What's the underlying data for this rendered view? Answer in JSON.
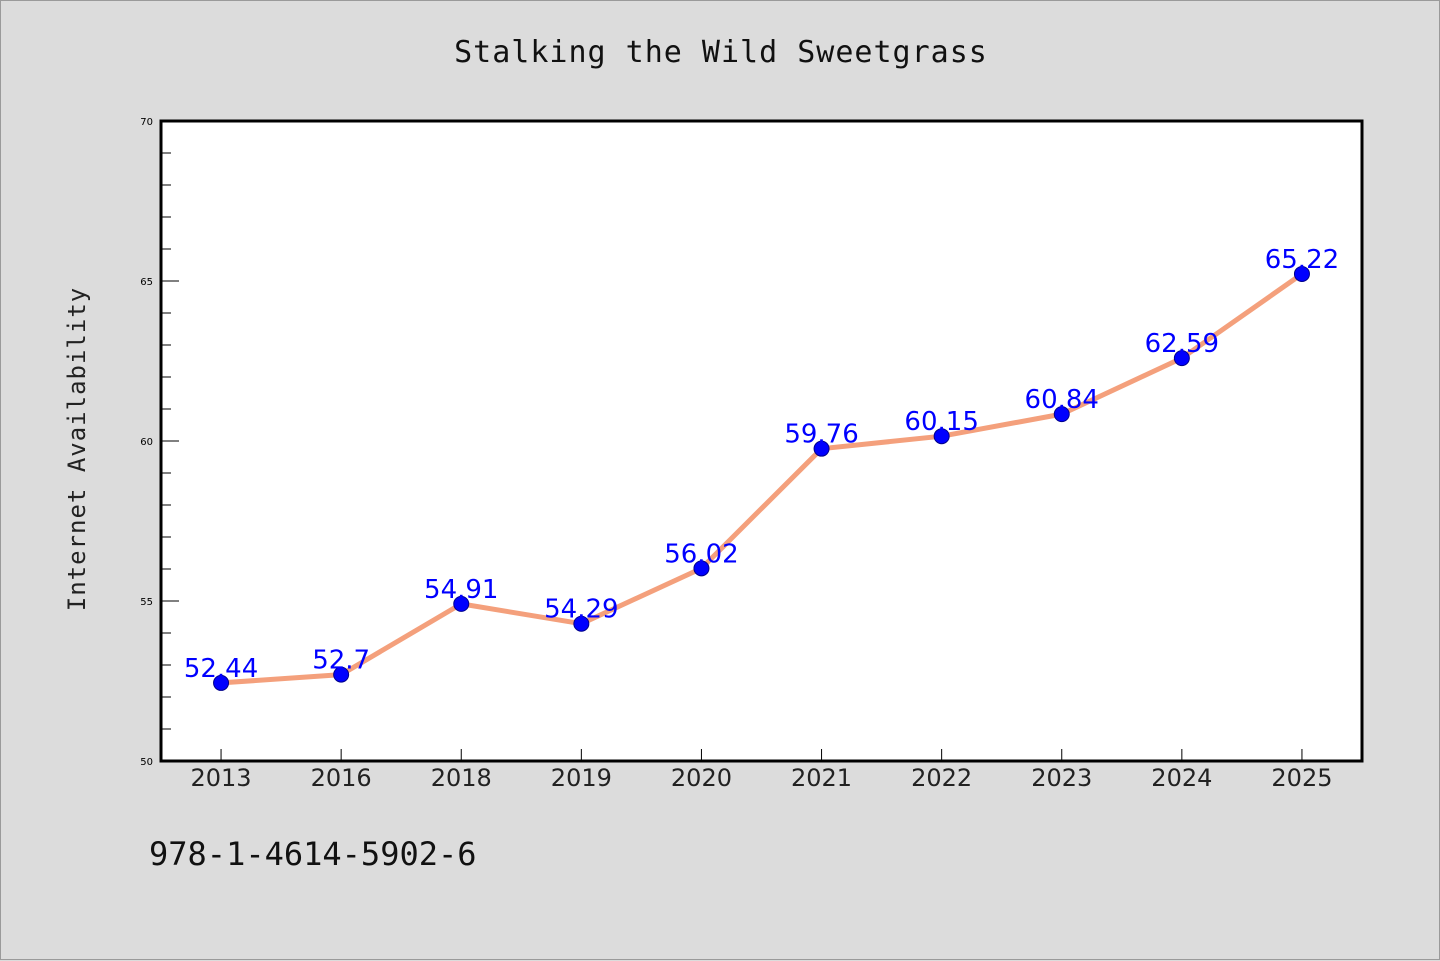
{
  "chart_data": {
    "type": "line",
    "title": "Stalking the Wild Sweetgrass",
    "xlabel": "",
    "ylabel": "Internet Availability",
    "categories": [
      "2013",
      "2016",
      "2018",
      "2019",
      "2020",
      "2021",
      "2022",
      "2023",
      "2024",
      "2025"
    ],
    "series": [
      {
        "values": [
          52.44,
          52.7,
          54.91,
          54.29,
          56.02,
          59.76,
          60.15,
          60.84,
          62.59,
          65.22
        ],
        "labels": [
          "52.44",
          "52.7",
          "54.91",
          "54.29",
          "56.02",
          "59.76",
          "60.15",
          "60.84",
          "62.59",
          "65.22"
        ]
      }
    ],
    "ylim": [
      50,
      70
    ],
    "yticks": [
      "50",
      "55",
      "60",
      "65",
      "70"
    ],
    "grid": false,
    "colors": {
      "line": "#f4a07c",
      "marker": "#0000ff",
      "data_label": "#0000ff",
      "plot_background": "#ffffff",
      "figure_background": "#dcdcdc"
    }
  },
  "footer": {
    "text": "978-1-4614-5902-6"
  }
}
